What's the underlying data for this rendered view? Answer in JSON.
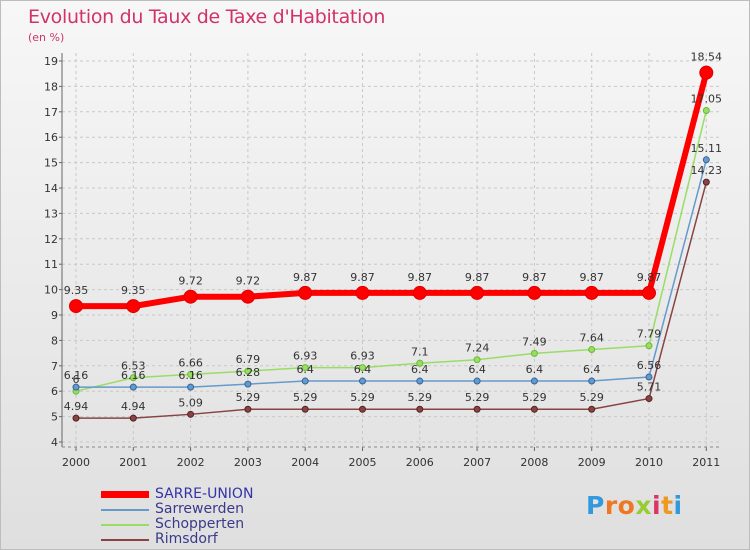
{
  "title": "Evolution du Taux de Taxe d'Habitation",
  "subtitle": "(en %)",
  "logo_text": "Proxiti",
  "chart_data": {
    "type": "line",
    "title": "Evolution du Taux de Taxe d'Habitation",
    "ylabel": "(en %)",
    "xlabel": "",
    "ylim": [
      4,
      19
    ],
    "yticks": [
      "4",
      "5",
      "6",
      "7",
      "8",
      "9",
      "10",
      "11",
      "12",
      "13",
      "14",
      "15",
      "16",
      "17",
      "18",
      "19"
    ],
    "categories": [
      "2000",
      "2001",
      "2002",
      "2003",
      "2004",
      "2005",
      "2006",
      "2007",
      "2008",
      "2009",
      "2010",
      "2011"
    ],
    "legend_position": "bottom-left",
    "series": [
      {
        "name": "SARRE-UNION",
        "color": "#ff0000",
        "values": [
          9.35,
          9.35,
          9.72,
          9.72,
          9.87,
          9.87,
          9.87,
          9.87,
          9.87,
          9.87,
          9.87,
          18.54
        ],
        "labels": [
          "9.35",
          "9.35",
          "9.72",
          "9.72",
          "9.87",
          "9.87",
          "9.87",
          "9.87",
          "9.87",
          "9.87",
          "9.87",
          "18.54"
        ]
      },
      {
        "name": "Sarrewerden",
        "color": "#6699cc",
        "values": [
          6.16,
          6.16,
          6.16,
          6.28,
          6.4,
          6.4,
          6.4,
          6.4,
          6.4,
          6.4,
          6.56,
          15.11
        ],
        "labels": [
          "6.16",
          "6.16",
          "6.16",
          "6.28",
          "6.4",
          "6.4",
          "6.4",
          "6.4",
          "6.4",
          "6.4",
          "6.56",
          "15.11"
        ]
      },
      {
        "name": "Schopperten",
        "color": "#99dd66",
        "values": [
          6.0,
          6.53,
          6.66,
          6.79,
          6.93,
          6.93,
          7.1,
          7.24,
          7.49,
          7.64,
          7.79,
          17.05
        ],
        "labels": [
          "6",
          "6.53",
          "6.66",
          "6.79",
          "6.93",
          "6.93",
          "7.1",
          "7.24",
          "7.49",
          "7.64",
          "7.79",
          "17.05"
        ]
      },
      {
        "name": "Rimsdorf",
        "color": "#884444",
        "values": [
          4.94,
          4.94,
          5.09,
          5.29,
          5.29,
          5.29,
          5.29,
          5.29,
          5.29,
          5.29,
          5.71,
          14.23
        ],
        "labels": [
          "4.94",
          "4.94",
          "5.09",
          "5.29",
          "5.29",
          "5.29",
          "5.29",
          "5.29",
          "5.29",
          "5.29",
          "5.71",
          "14.23"
        ]
      }
    ]
  }
}
